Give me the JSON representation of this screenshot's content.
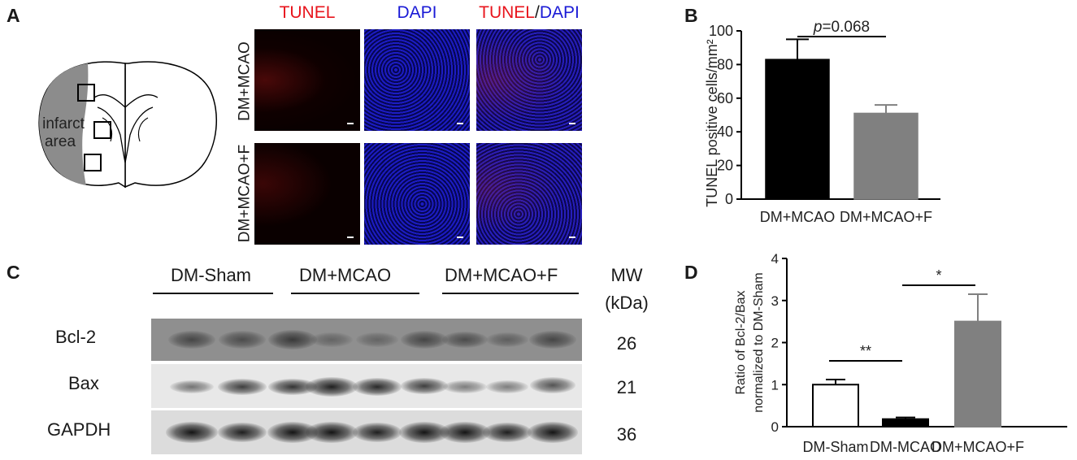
{
  "panel_letters": {
    "a": "A",
    "b": "B",
    "c": "C",
    "d": "D"
  },
  "brain": {
    "label_line1": "infarct",
    "label_line2": "area"
  },
  "micro": {
    "col_tunel": "TUNEL",
    "col_dapi": "DAPI",
    "col_merge_tunel": "TUNEL",
    "col_merge_sep": "/",
    "col_merge_dapi": "DAPI",
    "row1": "DM+MCAO",
    "row2": "DM+MCAO+F",
    "colors": {
      "tunel": "#e8141c",
      "dapi": "#1a1ad6"
    }
  },
  "western": {
    "groups": [
      "DM-Sham",
      "DM+MCAO",
      "DM+MCAO+F"
    ],
    "mw_line1": "MW",
    "mw_line2": "(kDa)",
    "rows": [
      {
        "label": "Bcl-2",
        "mw": "26"
      },
      {
        "label": "Bax",
        "mw": "21"
      },
      {
        "label": "GAPDH",
        "mw": "36"
      }
    ]
  },
  "chart_data": [
    {
      "type": "bar",
      "ylabel": "TUNEL positive cells/mm²",
      "categories": [
        "DM+MCAO",
        "DM+MCAO+F"
      ],
      "values": [
        83,
        51
      ],
      "errors": [
        12,
        5
      ],
      "colors": [
        "#000000",
        "#808080"
      ],
      "ylim": [
        0,
        100
      ],
      "yticks": [
        "0",
        "20",
        "40",
        "60",
        "80",
        "100"
      ],
      "annotation": {
        "p_italic": "p",
        "p_rest": "=0.068"
      }
    },
    {
      "type": "bar",
      "ylabel_line1": "Ratio of  Bcl-2/Bax",
      "ylabel_line2": "normalized  to DM-Sham",
      "categories": [
        "DM-Sham",
        "DM-MCAO",
        "DM+MCAO+F"
      ],
      "values": [
        1.0,
        0.18,
        2.5
      ],
      "errors": [
        0.12,
        0.04,
        0.65
      ],
      "colors": [
        "#ffffff",
        "#000000",
        "#808080"
      ],
      "ylim": [
        0,
        4
      ],
      "yticks": [
        "0",
        "1",
        "2",
        "3",
        "4"
      ],
      "significance": [
        "**",
        "*"
      ]
    }
  ]
}
